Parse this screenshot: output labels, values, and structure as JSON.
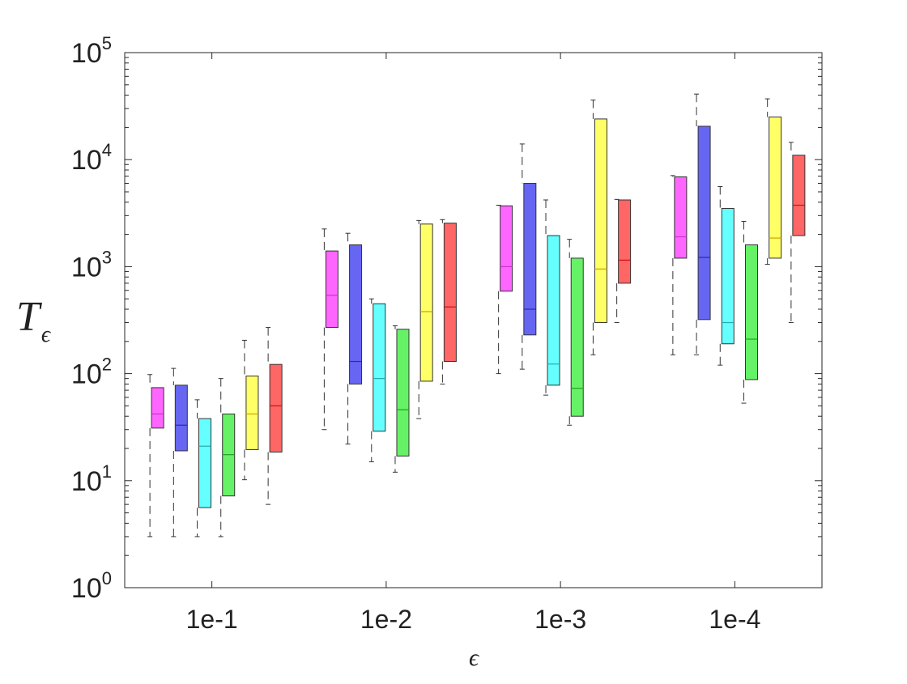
{
  "chart_data": {
    "type": "box",
    "title": "",
    "xlabel": "ϵ",
    "ylabel_main": "T",
    "ylabel_sub": "ϵ",
    "y_scale": "log",
    "ylim": [
      1,
      100000
    ],
    "y_ticks": [
      {
        "value": 1,
        "base": "10",
        "exp": "0"
      },
      {
        "value": 10,
        "base": "10",
        "exp": "1"
      },
      {
        "value": 100,
        "base": "10",
        "exp": "2"
      },
      {
        "value": 1000,
        "base": "10",
        "exp": "3"
      },
      {
        "value": 10000,
        "base": "10",
        "exp": "4"
      },
      {
        "value": 100000,
        "base": "10",
        "exp": "5"
      }
    ],
    "categories": [
      "1e-1",
      "1e-2",
      "1e-3",
      "1e-4"
    ],
    "series_colors": [
      "#ff66ff",
      "#6666f2",
      "#66ffff",
      "#66f266",
      "#ffff66",
      "#ff6666"
    ],
    "series_median_colors": [
      "#cc33cc",
      "#2a2aa8",
      "#2aaaaa",
      "#2a9a2a",
      "#c8a800",
      "#cc1111"
    ],
    "grid": false,
    "boxes": [
      [
        {
          "lower": 3,
          "q1": 31,
          "median": 42,
          "q3": 74,
          "upper": 98
        },
        {
          "lower": 3,
          "q1": 19,
          "median": 33,
          "q3": 78,
          "upper": 112
        },
        {
          "lower": 3,
          "q1": 5.6,
          "median": 21,
          "q3": 38,
          "upper": 57
        },
        {
          "lower": 3,
          "q1": 7.2,
          "median": 17.5,
          "q3": 42,
          "upper": 90
        },
        {
          "lower": 10.2,
          "q1": 19.5,
          "median": 42,
          "q3": 95,
          "upper": 205
        },
        {
          "lower": 6,
          "q1": 18.5,
          "median": 50,
          "q3": 122,
          "upper": 270
        }
      ],
      [
        {
          "lower": 30,
          "q1": 270,
          "median": 540,
          "q3": 1400,
          "upper": 2250
        },
        {
          "lower": 22,
          "q1": 80,
          "median": 130,
          "q3": 1600,
          "upper": 2050
        },
        {
          "lower": 15,
          "q1": 29,
          "median": 90,
          "q3": 450,
          "upper": 500
        },
        {
          "lower": 12,
          "q1": 17,
          "median": 46,
          "q3": 260,
          "upper": 280
        },
        {
          "lower": 38,
          "q1": 85,
          "median": 380,
          "q3": 2500,
          "upper": 2700
        },
        {
          "lower": 80,
          "q1": 130,
          "median": 420,
          "q3": 2550,
          "upper": 2750
        }
      ],
      [
        {
          "lower": 100,
          "q1": 590,
          "median": 1000,
          "q3": 3700,
          "upper": 3750
        },
        {
          "lower": 110,
          "q1": 230,
          "median": 400,
          "q3": 6000,
          "upper": 14000
        },
        {
          "lower": 63,
          "q1": 78,
          "median": 123,
          "q3": 1950,
          "upper": 4200
        },
        {
          "lower": 33,
          "q1": 40,
          "median": 73,
          "q3": 1200,
          "upper": 1800
        },
        {
          "lower": 150,
          "q1": 300,
          "median": 950,
          "q3": 24000,
          "upper": 36000
        },
        {
          "lower": 300,
          "q1": 700,
          "median": 1150,
          "q3": 4200,
          "upper": 4250
        }
      ],
      [
        {
          "lower": 150,
          "q1": 1200,
          "median": 1900,
          "q3": 6900,
          "upper": 7100
        },
        {
          "lower": 150,
          "q1": 320,
          "median": 1220,
          "q3": 20500,
          "upper": 41000
        },
        {
          "lower": 120,
          "q1": 190,
          "median": 300,
          "q3": 3500,
          "upper": 5600
        },
        {
          "lower": 53,
          "q1": 88,
          "median": 210,
          "q3": 1600,
          "upper": 2650
        },
        {
          "lower": 1050,
          "q1": 1200,
          "median": 1850,
          "q3": 25000,
          "upper": 37000
        },
        {
          "lower": 300,
          "q1": 1950,
          "median": 3750,
          "q3": 11000,
          "upper": 14500
        }
      ]
    ]
  }
}
